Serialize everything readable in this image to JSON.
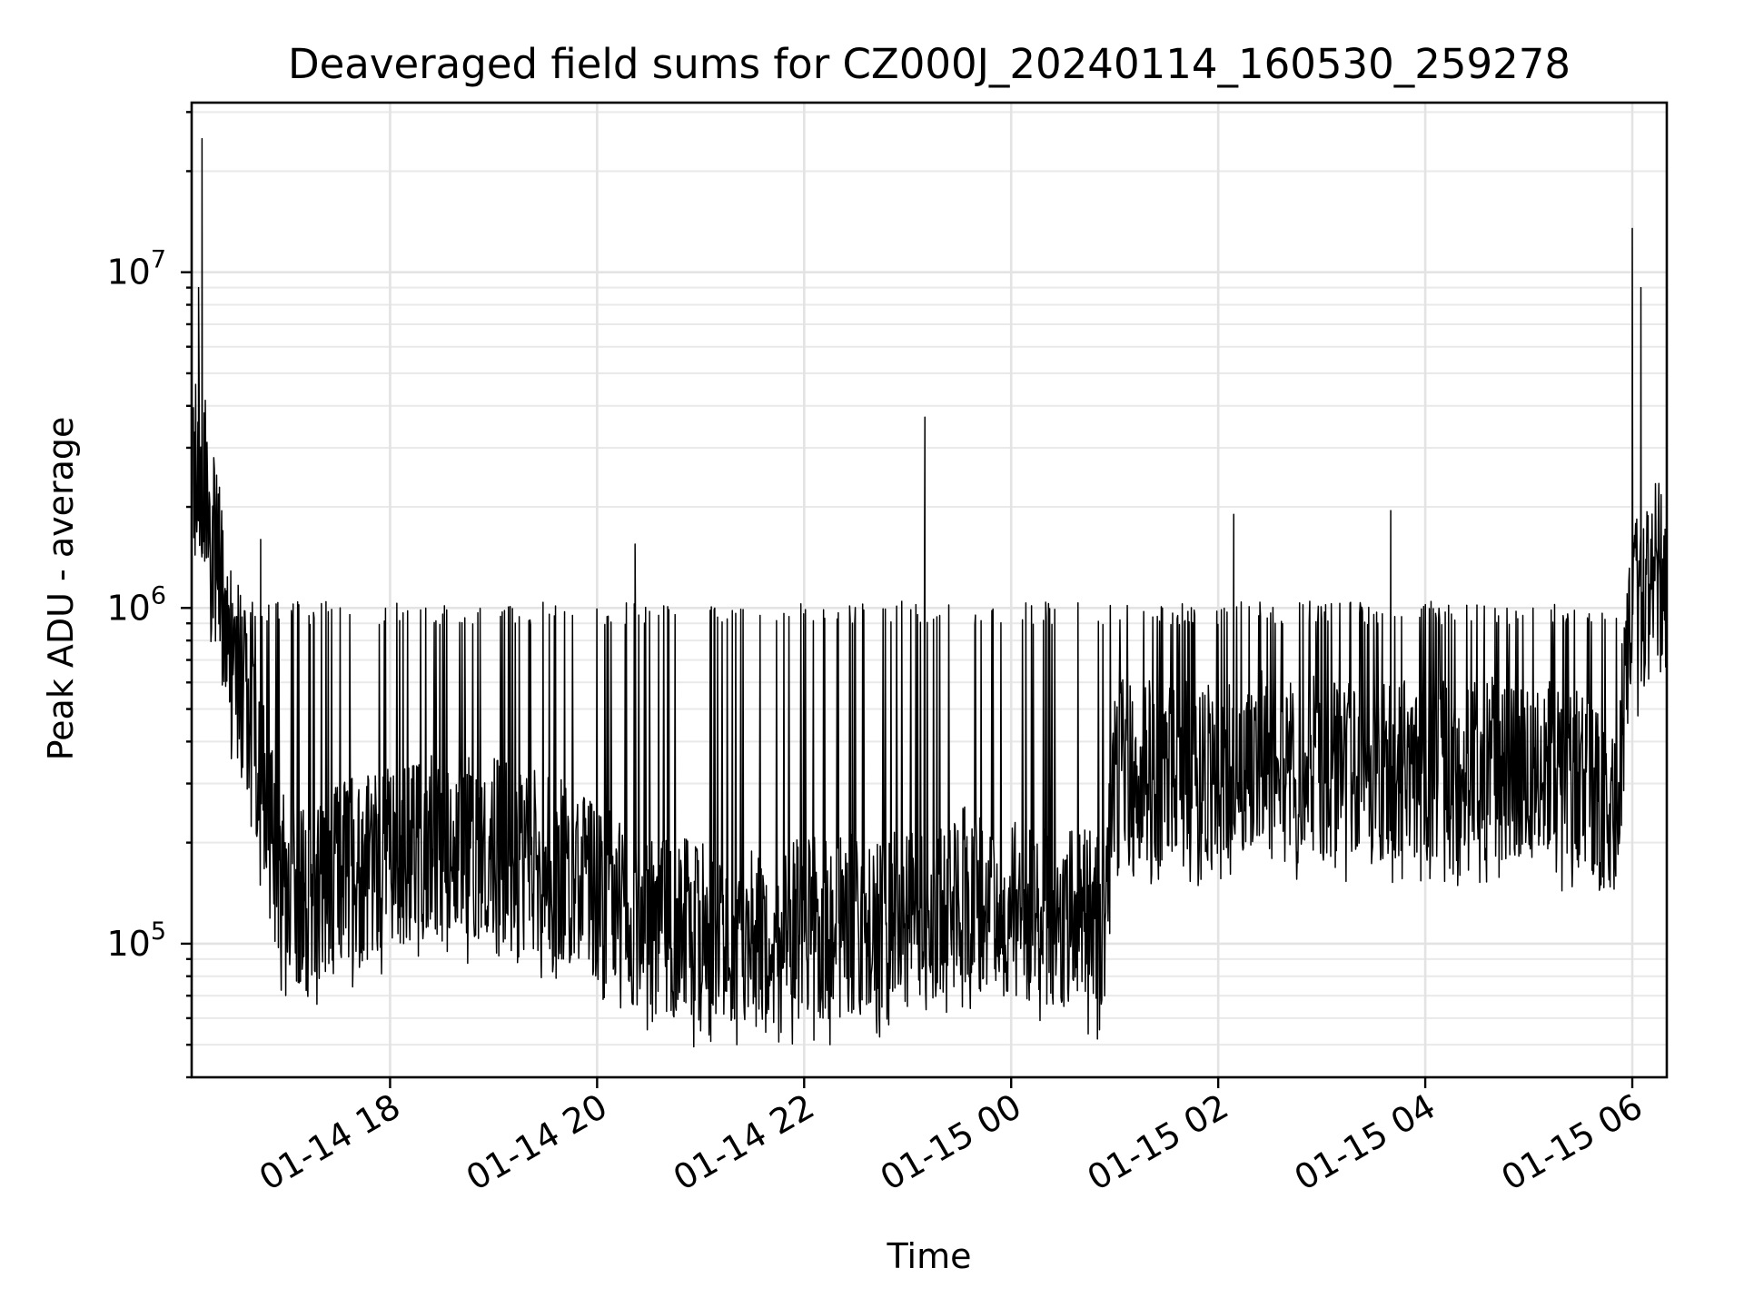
{
  "chart_data": {
    "type": "line",
    "title": "Deaveraged field sums for CZ000J_20240114_160530_259278",
    "xlabel": "Time",
    "ylabel": "Peak ADU - average",
    "yscale": "log",
    "grid": true,
    "xlim": [
      "2024-01-14 16:05",
      "2024-01-15 06:20"
    ],
    "ylim": [
      40000,
      32000000
    ],
    "x_tick_labels": [
      "01-14 18",
      "01-14 20",
      "01-14 22",
      "01-15 00",
      "01-15 02",
      "01-15 04",
      "01-15 06"
    ],
    "y_tick_labels": [
      {
        "base": "10",
        "exp": "5"
      },
      {
        "base": "10",
        "exp": "6"
      },
      {
        "base": "10",
        "exp": "7"
      }
    ],
    "series_color": "#000000",
    "series": [
      {
        "x": [
          "2024-01-14 16:06",
          "2024-01-14 16:12",
          "2024-01-14 16:18",
          "2024-01-14 16:24",
          "2024-01-14 16:30",
          "2024-01-14 16:36",
          "2024-01-14 16:42",
          "2024-01-14 16:48",
          "2024-01-14 16:54",
          "2024-01-14 17:00",
          "2024-01-14 17:15",
          "2024-01-14 17:30",
          "2024-01-14 17:45",
          "2024-01-14 18:00",
          "2024-01-14 18:30",
          "2024-01-14 19:00",
          "2024-01-14 19:30",
          "2024-01-14 20:00",
          "2024-01-14 20:20",
          "2024-01-14 20:40",
          "2024-01-14 21:00",
          "2024-01-14 21:30",
          "2024-01-14 22:00",
          "2024-01-14 22:30",
          "2024-01-14 23:00",
          "2024-01-14 23:30",
          "2024-01-15 00:00",
          "2024-01-15 00:30",
          "2024-01-15 00:55",
          "2024-01-15 01:00",
          "2024-01-15 01:30",
          "2024-01-15 02:00",
          "2024-01-15 02:30",
          "2024-01-15 03:00",
          "2024-01-15 03:30",
          "2024-01-15 04:00",
          "2024-01-15 04:30",
          "2024-01-15 05:00",
          "2024-01-15 05:30",
          "2024-01-15 05:50",
          "2024-01-15 06:00",
          "2024-01-15 06:10",
          "2024-01-15 06:20"
        ],
        "y": [
          3000000,
          2500000,
          1500000,
          1000000,
          700000,
          550000,
          400000,
          250000,
          180000,
          140000,
          130000,
          160000,
          170000,
          180000,
          200000,
          190000,
          170000,
          150000,
          120000,
          110000,
          110000,
          105000,
          110000,
          115000,
          120000,
          140000,
          130000,
          120000,
          120000,
          350000,
          320000,
          330000,
          350000,
          330000,
          320000,
          330000,
          330000,
          340000,
          300000,
          250000,
          900000,
          1400000,
          1200000
        ]
      }
    ],
    "annotated_peaks": [
      {
        "x": "2024-01-14 16:11",
        "y": 25000000
      },
      {
        "x": "2024-01-14 16:09",
        "y": 9000000
      },
      {
        "x": "2024-01-14 16:45",
        "y": 1600000
      },
      {
        "x": "2024-01-14 20:22",
        "y": 1550000
      },
      {
        "x": "2024-01-14 23:10",
        "y": 3700000
      },
      {
        "x": "2024-01-15 02:09",
        "y": 1900000
      },
      {
        "x": "2024-01-15 03:40",
        "y": 1950000
      },
      {
        "x": "2024-01-15 06:00",
        "y": 13500000
      },
      {
        "x": "2024-01-15 06:05",
        "y": 9000000
      }
    ],
    "annotated_troughs": [
      {
        "x": "2024-01-14 22:15",
        "y": 50000
      },
      {
        "x": "2024-01-15 00:50",
        "y": 52000
      },
      {
        "x": "2024-01-14 21:00",
        "y": 55000
      }
    ]
  }
}
